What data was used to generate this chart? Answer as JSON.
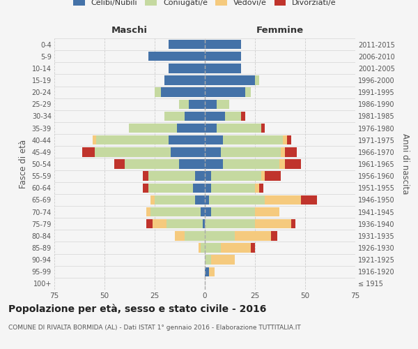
{
  "age_groups": [
    "100+",
    "95-99",
    "90-94",
    "85-89",
    "80-84",
    "75-79",
    "70-74",
    "65-69",
    "60-64",
    "55-59",
    "50-54",
    "45-49",
    "40-44",
    "35-39",
    "30-34",
    "25-29",
    "20-24",
    "15-19",
    "10-14",
    "5-9",
    "0-4"
  ],
  "birth_years": [
    "≤ 1915",
    "1916-1920",
    "1921-1925",
    "1926-1930",
    "1931-1935",
    "1936-1940",
    "1941-1945",
    "1946-1950",
    "1951-1955",
    "1956-1960",
    "1961-1965",
    "1966-1970",
    "1971-1975",
    "1976-1980",
    "1981-1985",
    "1986-1990",
    "1991-1995",
    "1996-2000",
    "2001-2005",
    "2006-2010",
    "2011-2015"
  ],
  "males": {
    "celibe": [
      0,
      0,
      0,
      0,
      0,
      1,
      2,
      5,
      6,
      5,
      13,
      17,
      18,
      14,
      10,
      8,
      22,
      20,
      18,
      28,
      18
    ],
    "coniugato": [
      0,
      0,
      0,
      2,
      10,
      18,
      25,
      20,
      22,
      23,
      27,
      38,
      36,
      24,
      10,
      5,
      3,
      0,
      0,
      0,
      0
    ],
    "vedovo": [
      0,
      0,
      0,
      1,
      5,
      7,
      2,
      2,
      0,
      0,
      0,
      0,
      2,
      0,
      0,
      0,
      0,
      0,
      0,
      0,
      0
    ],
    "divorziato": [
      0,
      0,
      0,
      0,
      0,
      3,
      0,
      0,
      3,
      3,
      5,
      6,
      0,
      0,
      0,
      0,
      0,
      0,
      0,
      0,
      0
    ]
  },
  "females": {
    "nubile": [
      0,
      2,
      0,
      0,
      0,
      0,
      3,
      2,
      3,
      3,
      9,
      8,
      9,
      6,
      10,
      6,
      20,
      25,
      18,
      18,
      18
    ],
    "coniugata": [
      0,
      0,
      3,
      8,
      15,
      25,
      22,
      28,
      22,
      25,
      28,
      30,
      30,
      22,
      8,
      6,
      3,
      2,
      0,
      0,
      0
    ],
    "vedova": [
      0,
      3,
      12,
      15,
      18,
      18,
      12,
      18,
      2,
      2,
      3,
      2,
      2,
      0,
      0,
      0,
      0,
      0,
      0,
      0,
      0
    ],
    "divorziata": [
      0,
      0,
      0,
      2,
      3,
      2,
      0,
      8,
      2,
      8,
      8,
      6,
      2,
      2,
      2,
      0,
      0,
      0,
      0,
      0,
      0
    ]
  },
  "colors": {
    "celibe": "#4472a8",
    "coniugato": "#c5d9a0",
    "vedovo": "#f5ca7e",
    "divorziato": "#c0342c"
  },
  "legend_labels": [
    "Celibi/Nubili",
    "Coniugati/e",
    "Vedovi/e",
    "Divorziati/e"
  ],
  "title": "Popolazione per età, sesso e stato civile - 2016",
  "subtitle": "COMUNE DI RIVALTA BORMIDA (AL) - Dati ISTAT 1° gennaio 2016 - Elaborazione TUTTITALIA.IT",
  "ylabel_left": "Fasce di età",
  "ylabel_right": "Anni di nascita",
  "label_maschi": "Maschi",
  "label_femmine": "Femmine",
  "xlim": 75,
  "bg_color": "#f5f5f5",
  "grid_color": "#cccccc",
  "text_color": "#555555"
}
